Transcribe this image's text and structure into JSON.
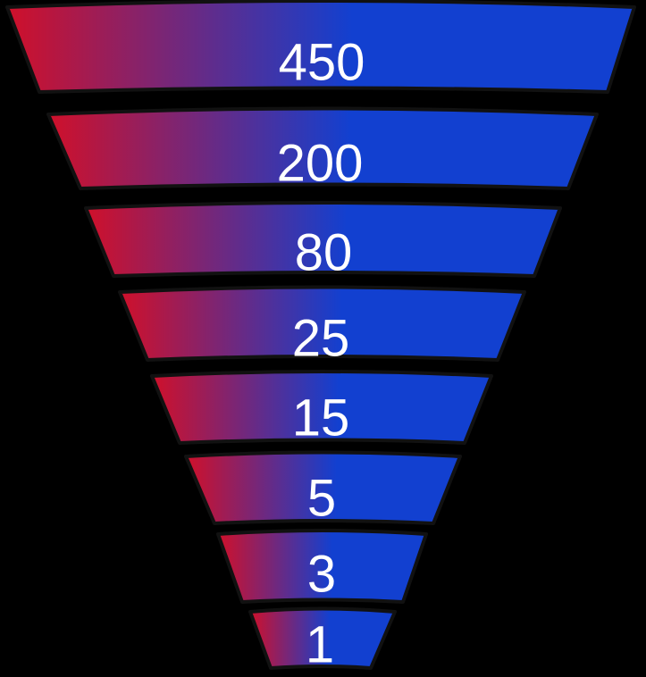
{
  "chart_data": {
    "type": "funnel",
    "title": "",
    "values": [
      450,
      200,
      80,
      25,
      15,
      5,
      3,
      1
    ],
    "labels": [
      "450",
      "200",
      "80",
      "25",
      "15",
      "5",
      "3",
      "1"
    ],
    "gradient": {
      "start_color": "#d0102a",
      "end_color": "#1240d0",
      "direction": "left-to-right"
    },
    "outline_color": "#111111",
    "label_color": "#ffffff",
    "legend": false,
    "grid": false
  }
}
